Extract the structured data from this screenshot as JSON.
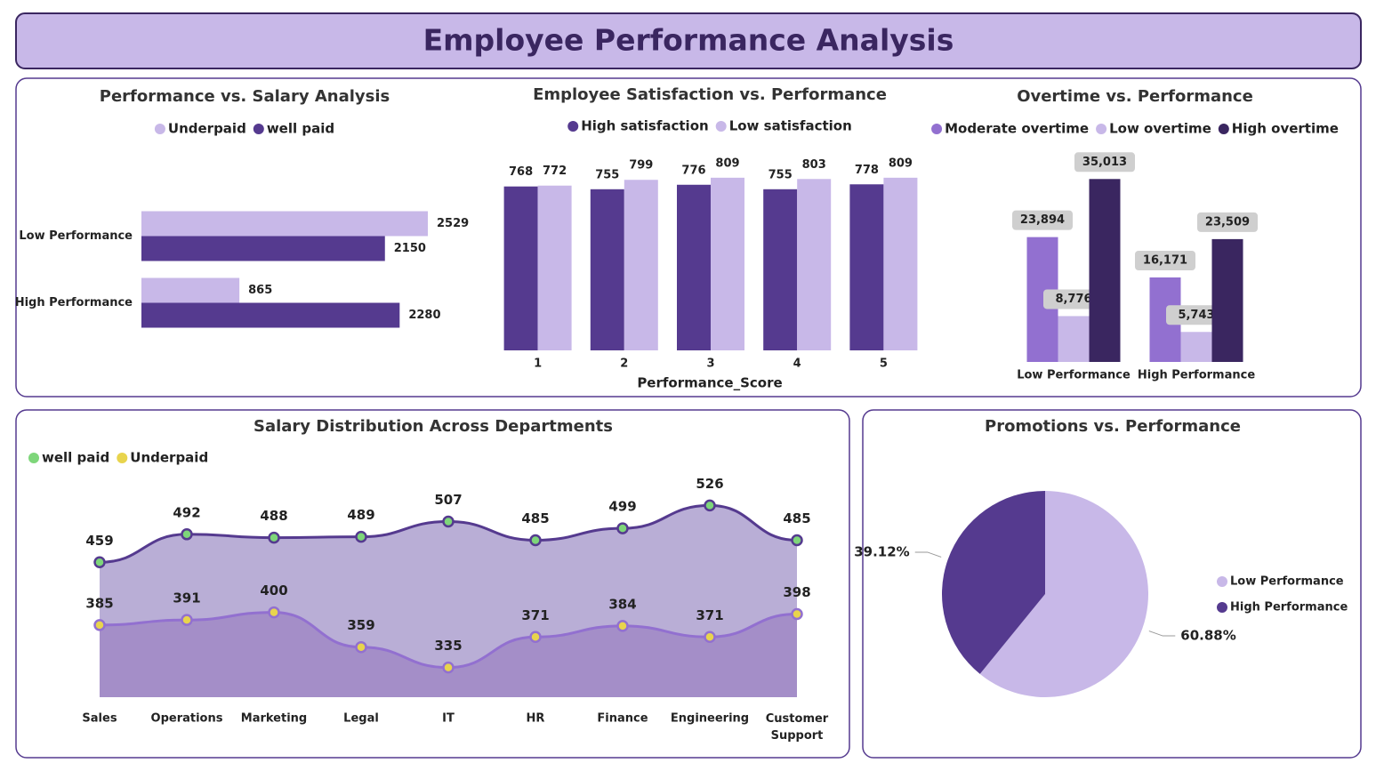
{
  "title": "Employee Performance Analysis",
  "chart_data": [
    {
      "type": "hbar",
      "title": "Performance vs. Salary Analysis",
      "categories": [
        "Low Performance",
        "High Performance"
      ],
      "series": [
        {
          "name": "Underpaid",
          "color": "#c8b8e8",
          "values": [
            2529,
            865
          ]
        },
        {
          "name": "well paid",
          "color": "#553a8f",
          "values": [
            2150,
            2280
          ]
        }
      ],
      "xlim": [
        0,
        3000
      ]
    },
    {
      "type": "bar",
      "title": "Employee Satisfaction vs. Performance",
      "x_label": "Performance_Score",
      "categories": [
        "1",
        "2",
        "3",
        "4",
        "5"
      ],
      "series": [
        {
          "name": "High satisfaction",
          "color": "#553a8f",
          "values": [
            768,
            755,
            776,
            755,
            778
          ]
        },
        {
          "name": "Low satisfaction",
          "color": "#c8b8e8",
          "values": [
            772,
            799,
            809,
            803,
            809
          ]
        }
      ],
      "ylim": [
        0,
        900
      ]
    },
    {
      "type": "bar",
      "title": "Overtime vs. Performance",
      "categories": [
        "Low Performance",
        "High Performance"
      ],
      "series": [
        {
          "name": "Moderate overtime",
          "color": "#9270d0",
          "values": [
            23894,
            16171
          ],
          "value_labels": [
            "23,894",
            "16,171"
          ]
        },
        {
          "name": "Low overtime",
          "color": "#c8b8e8",
          "values": [
            8776,
            5743
          ],
          "value_labels": [
            "8,776",
            "5,743"
          ]
        },
        {
          "name": "High overtime",
          "color": "#3a2660",
          "values": [
            35013,
            23509
          ],
          "value_labels": [
            "35,013",
            "23,509"
          ]
        }
      ],
      "ylim": [
        0,
        40000
      ]
    },
    {
      "type": "area",
      "title": "Salary Distribution Across Departments",
      "categories": [
        "Sales",
        "Operations",
        "Marketing",
        "Legal",
        "IT",
        "HR",
        "Finance",
        "Engineering",
        "Customer Support"
      ],
      "series": [
        {
          "name": "well paid",
          "color": "#553a8f",
          "fill": "#b9aed6",
          "marker_color": "#7ed67a",
          "values": [
            459,
            492,
            488,
            489,
            507,
            485,
            499,
            526,
            485
          ]
        },
        {
          "name": "Underpaid",
          "color": "#9270d0",
          "fill": "#a48ec8",
          "marker_color": "#e8d44d",
          "values": [
            385,
            391,
            400,
            359,
            335,
            371,
            384,
            371,
            398
          ]
        }
      ],
      "ylim": [
        300,
        540
      ]
    },
    {
      "type": "pie",
      "title": "Promotions vs. Performance",
      "categories": [
        "Low Performance",
        "High Performance"
      ],
      "values": [
        60.88,
        39.12
      ],
      "value_labels": [
        "60.88%",
        "39.12%"
      ],
      "colors": [
        "#c8b8e8",
        "#553a8f"
      ]
    }
  ]
}
